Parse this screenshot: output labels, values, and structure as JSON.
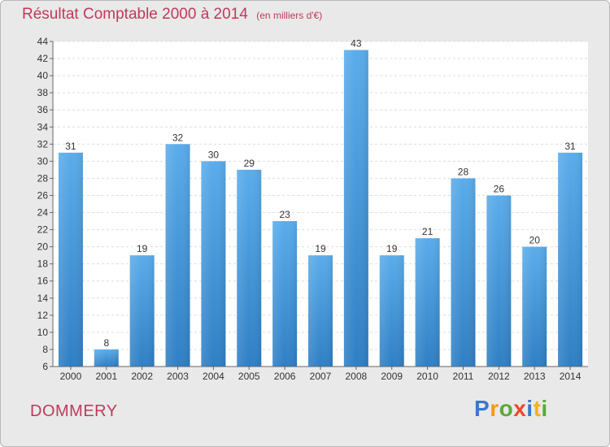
{
  "chart_data": {
    "type": "bar",
    "title": "Résultat Comptable 2000 à 2014",
    "subtitle": "(en milliers d'€)",
    "categories": [
      "2000",
      "2001",
      "2002",
      "2003",
      "2004",
      "2005",
      "2006",
      "2007",
      "2008",
      "2009",
      "2010",
      "2011",
      "2012",
      "2013",
      "2014"
    ],
    "values": [
      31,
      8,
      19,
      32,
      30,
      29,
      23,
      19,
      43,
      19,
      21,
      28,
      26,
      20,
      31
    ],
    "ylim": [
      6,
      44
    ],
    "ytick_step": 2,
    "grid": true,
    "bar_color": "#4a9fe0"
  },
  "location": "DOMMERY",
  "brand": {
    "letters": [
      "P",
      "r",
      "o",
      "x",
      "i",
      "t",
      "i"
    ],
    "colors": [
      "#3a78c9",
      "#f39a1b",
      "#5aa93a",
      "#e84a2b",
      "#3a78c9",
      "#f3b21b",
      "#5aa93a"
    ]
  }
}
